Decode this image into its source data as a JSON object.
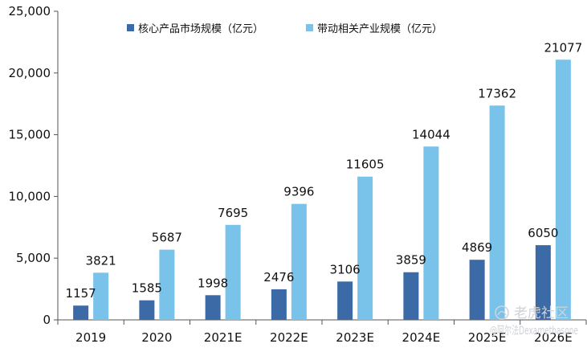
{
  "chart_data": {
    "type": "bar",
    "categories": [
      "2019",
      "2020",
      "2021E",
      "2022E",
      "2023E",
      "2024E",
      "2025E",
      "2026E"
    ],
    "series": [
      {
        "name": "核心产品市场规模（亿元）",
        "color": "#3b6aa6",
        "values": [
          1157,
          1585,
          1998,
          2476,
          3106,
          3859,
          4869,
          6050
        ]
      },
      {
        "name": "带动相关产业规模（亿元）",
        "color": "#79c2ea",
        "values": [
          3821,
          5687,
          7695,
          9396,
          11605,
          14044,
          17362,
          21077
        ]
      }
    ],
    "ylim": [
      0,
      25000
    ],
    "yticks": [
      0,
      5000,
      10000,
      15000,
      20000,
      25000
    ],
    "ytick_labels": [
      "0",
      "5,000",
      "10,000",
      "15,000",
      "20,000",
      "25,000"
    ],
    "grid": false,
    "legend_position": "top"
  },
  "watermark": {
    "line1": "老虎社区",
    "line2": "@阿尔法Dexamethasone",
    "icon": "tiger-logo-icon"
  }
}
